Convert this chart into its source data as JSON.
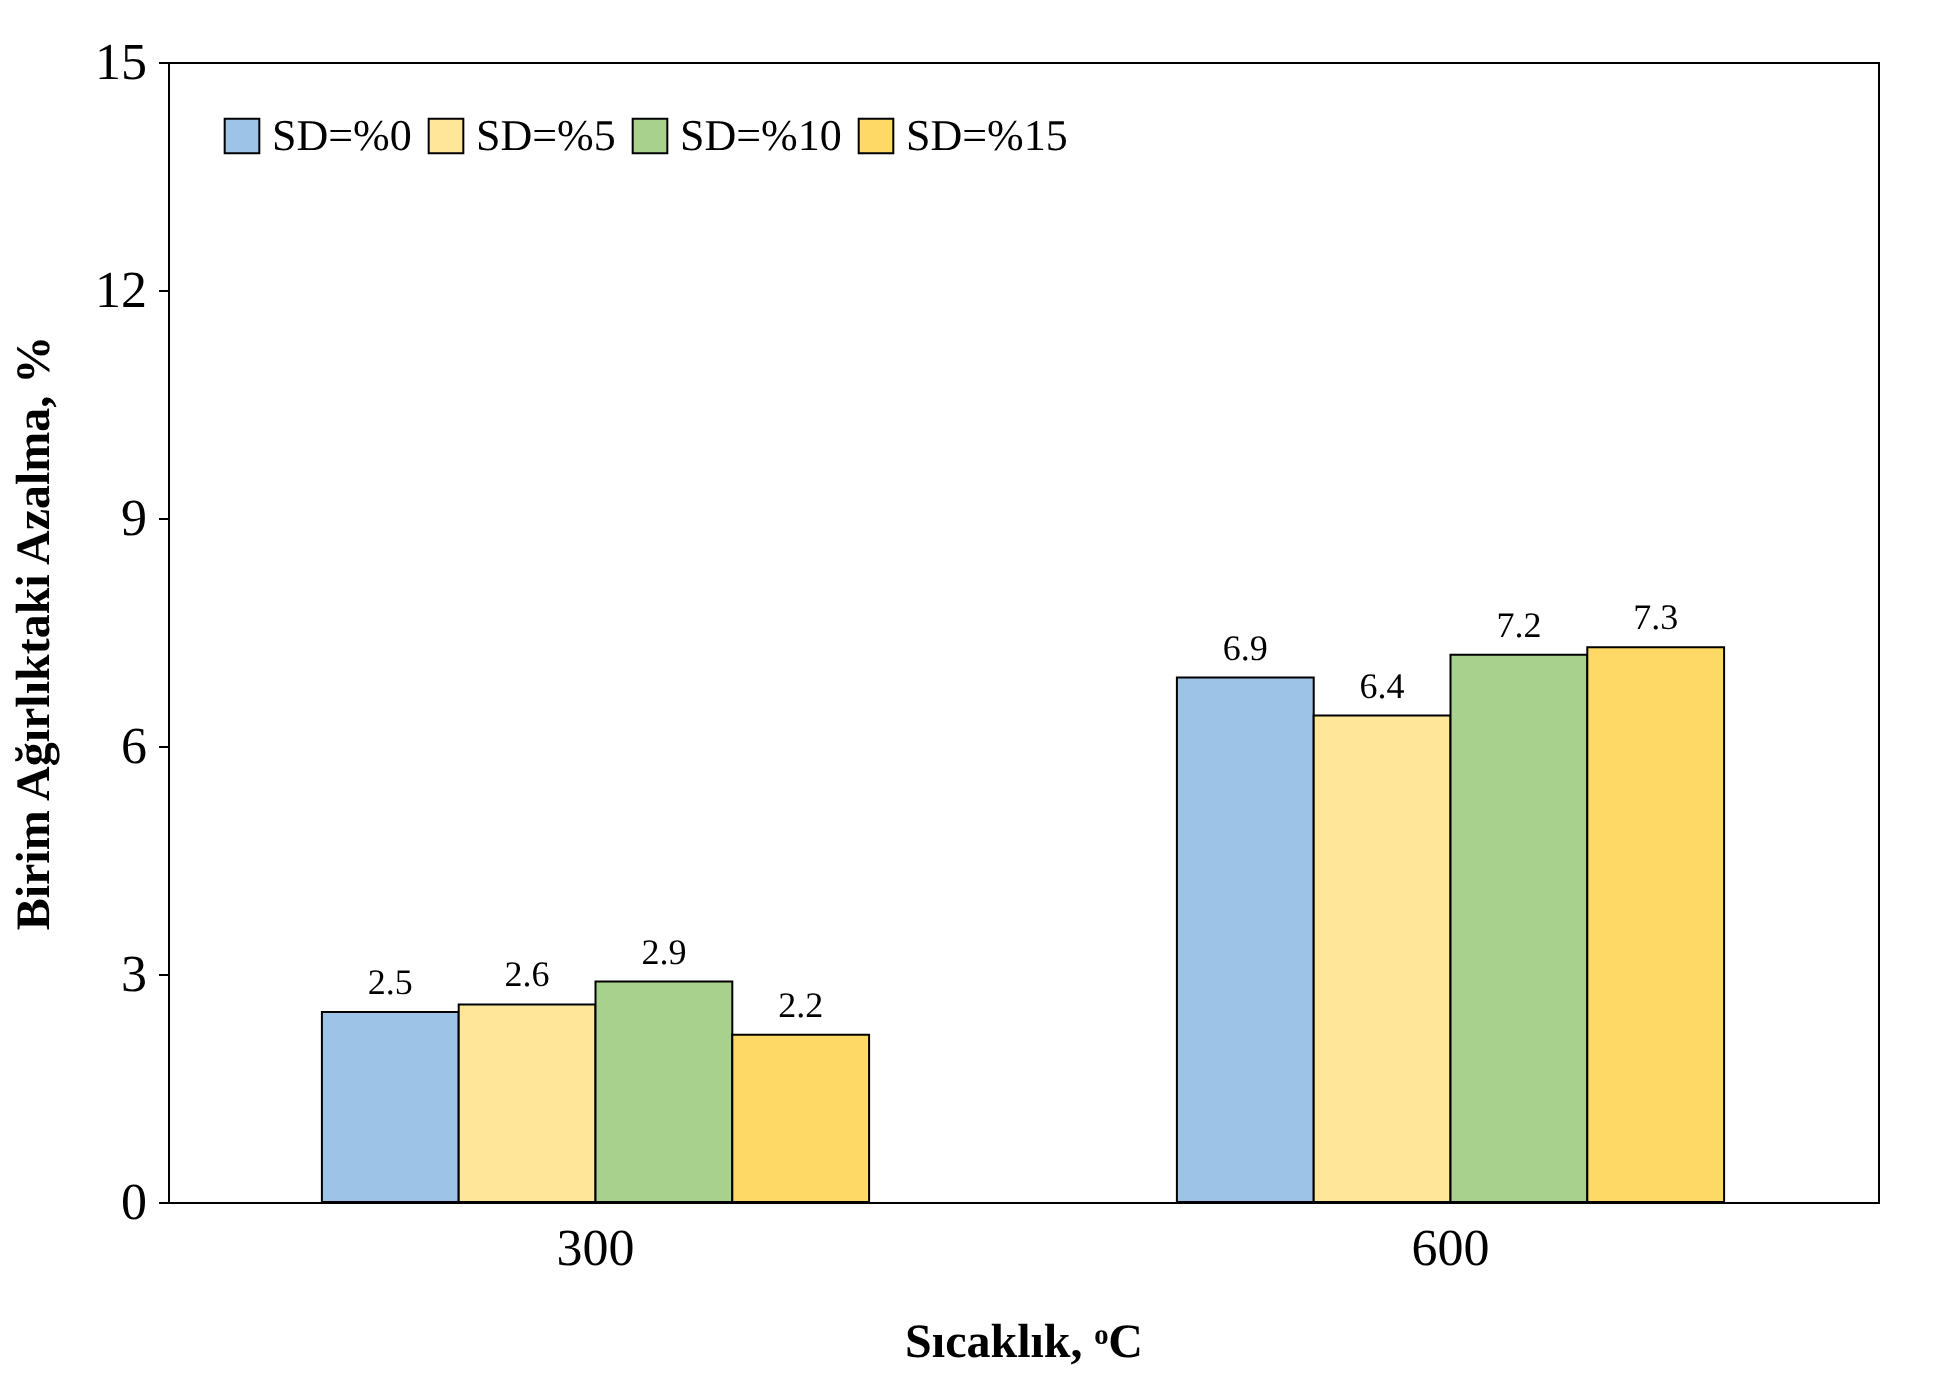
{
  "chart_data": {
    "type": "bar",
    "xlabel": "Sıcaklık, ᵒC",
    "ylabel": "Birim Ağırlıktaki Azalma, %",
    "categories": [
      "300",
      "600"
    ],
    "series": [
      {
        "name": "SD=%0",
        "color": "#9dc3e6",
        "values": [
          2.5,
          6.9
        ]
      },
      {
        "name": "SD=%5",
        "color": "#ffe699",
        "values": [
          2.6,
          6.4
        ]
      },
      {
        "name": "SD=%10",
        "color": "#a9d18e",
        "values": [
          2.9,
          7.2
        ]
      },
      {
        "name": "SD=%15",
        "color": "#ffd966",
        "values": [
          2.2,
          7.3
        ]
      }
    ],
    "ylim": [
      0,
      15
    ],
    "yticks": [
      0,
      3,
      6,
      9,
      12,
      15
    ],
    "grid": false,
    "legend": "top left",
    "data_labels": true
  }
}
